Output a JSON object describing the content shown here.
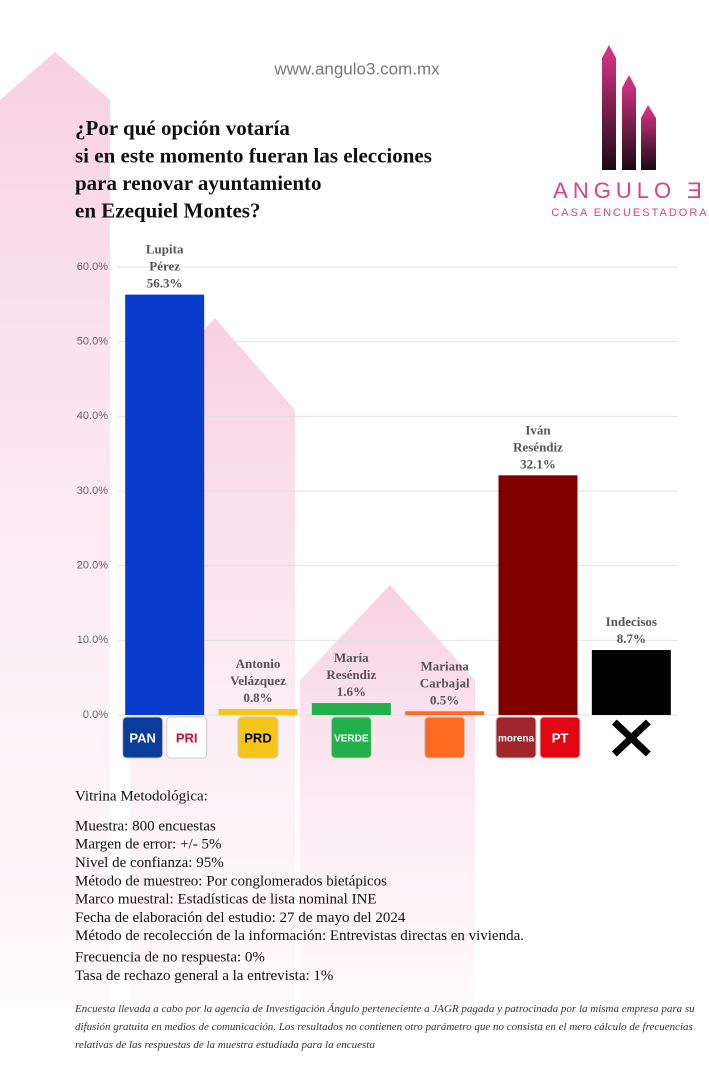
{
  "chart_data": {
    "type": "bar",
    "site": "www.angulo3.com.mx",
    "title_lines": [
      "¿Por qué opción votaría",
      "si en este momento fueran las elecciones",
      "para renovar ayuntamiento",
      "en Ezequiel Montes?"
    ],
    "brand": "ANGULO Ǝ",
    "brand_subtitle": "CASA ENCUESTADORA",
    "categories": [
      "Lupita Pérez",
      "Antonio Velázquez",
      "María Reséndiz",
      "Mariana Carbajal",
      "Iván Reséndiz",
      "Indecisos"
    ],
    "values": [
      56.3,
      0.8,
      1.6,
      0.5,
      32.1,
      8.7
    ],
    "value_labels": [
      "56.3%",
      "0.8%",
      "1.6%",
      "0.5%",
      "32.1%",
      "8.7%"
    ],
    "colors": [
      "#0a3ccc",
      "#f5c518",
      "#21b04b",
      "#ff6a21",
      "#800000",
      "#000000"
    ],
    "logos": [
      [
        {
          "label": "PAN",
          "color": "#0a3c9c"
        },
        {
          "label": "PRI",
          "color": "#ffffff"
        }
      ],
      [
        {
          "label": "PRD",
          "color": "#f5c518"
        }
      ],
      [
        {
          "label": "VERDE",
          "color": "#21b04b"
        }
      ],
      [
        {
          "label": "",
          "color": "#ff6a21"
        }
      ],
      [
        {
          "label": "morena",
          "color": "#a0252a"
        },
        {
          "label": "PT",
          "color": "#e30613"
        }
      ],
      []
    ],
    "ylim": [
      0,
      60
    ],
    "yticks": [
      {
        "value": 0,
        "label": "0.0%"
      },
      {
        "value": 10,
        "label": "10.0%"
      },
      {
        "value": 20,
        "label": "20.0%"
      },
      {
        "value": 30,
        "label": "30.0%"
      },
      {
        "value": 40,
        "label": "40.0%"
      },
      {
        "value": 50,
        "label": "50.0%"
      },
      {
        "value": 60,
        "label": "60.0%"
      }
    ],
    "grid": true
  },
  "methodology": {
    "heading": "Vitrina Metodológica:",
    "items": [
      "Muestra: 800 encuestas",
      "Margen de error: +/- 5%",
      "Nivel de confianza: 95%",
      "Método de muestreo: Por conglomerados bietápicos",
      "Marco muestral: Estadísticas de lista nominal INE",
      "Fecha de elaboración del estudio: 27 de mayo del 2024",
      "Método de recolección de la información: Entrevistas directas en vivienda.",
      "Frecuencia de no respuesta: 0%",
      "Tasa de rechazo general a la entrevista: 1%"
    ],
    "footer": "Encuesta llevada a cabo por la agencia de Investigación Ángulo perteneciente a JAGR pagada y patrocinada por la misma empresa para su difusión gratuita en medios de comunicación. Los resultados no contienen otro parámetro que no consista en el mero cálculo de frecuencias relativas de las respuestas de la muestra estudiada para la encuesta"
  }
}
